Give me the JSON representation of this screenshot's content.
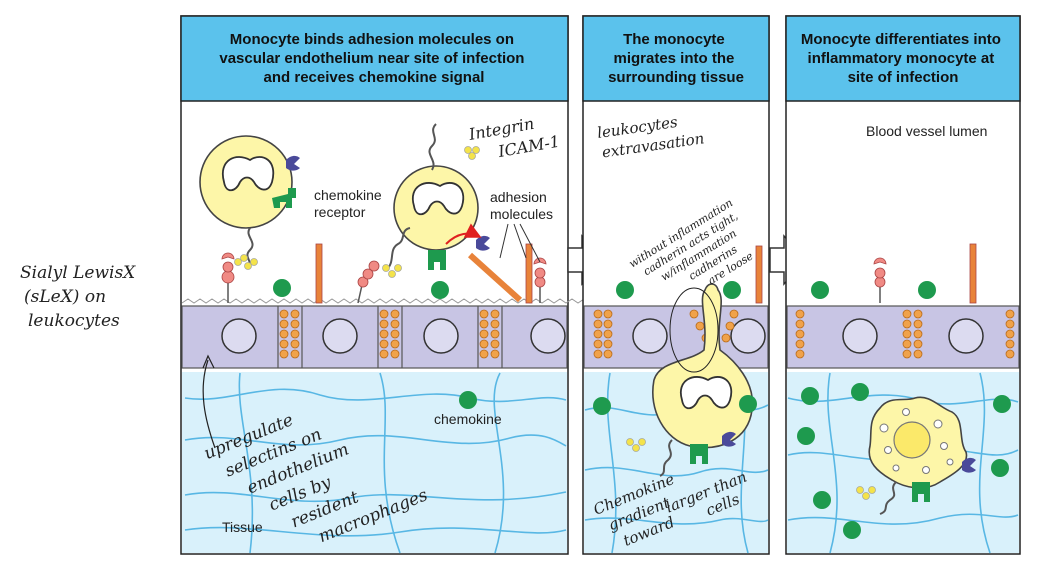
{
  "panels": [
    {
      "title_lines": [
        "Monocyte binds adhesion molecules on",
        "vascular endothelium near site of infection",
        "and receives chemokine signal"
      ]
    },
    {
      "title_lines": [
        "The monocyte",
        "migrates into the",
        "surrounding tissue"
      ]
    },
    {
      "title_lines": [
        "Monocyte differentiates into",
        "inflammatory monocyte at",
        "site of infection"
      ]
    }
  ],
  "labels": {
    "chemokine_receptor": [
      "chemokine",
      "receptor"
    ],
    "adhesion_molecules": [
      "adhesion",
      "molecules"
    ],
    "chemokine": "chemokine",
    "tissue": "Tissue",
    "lumen": "Blood vessel lumen"
  },
  "handwritten": {
    "sialyl": [
      "Sialyl LewisX",
      "(sLeX) on",
      "leukocytes"
    ],
    "upregulate": [
      "upregulate",
      "selectins on",
      "endothelium",
      "cells by",
      "resident",
      "macrophages"
    ],
    "integrin": [
      "Integrin",
      "ICAM-1"
    ],
    "leukocytes": [
      "leukocytes",
      "extravasation"
    ],
    "without": [
      "without inflammation",
      "cadherin acts tight,",
      "w/inflammation",
      "cadherins",
      "are loose"
    ],
    "chemokine_gradient": [
      "Chemokine",
      "gradient",
      "toward",
      "larger than",
      "cells"
    ]
  },
  "colors": {
    "header": "#5bc2ec",
    "tissue": "#d9f1fb",
    "tissue_lines": "#58b7e4",
    "endothelium": "#c8c5e4",
    "monocyte": "#fdf6a8",
    "chemokine_green": "#1e9a4e",
    "integrin_purple": "#4a4a9a",
    "junction_orange": "#f0a24a",
    "selectin_pink": "#f08a84"
  }
}
